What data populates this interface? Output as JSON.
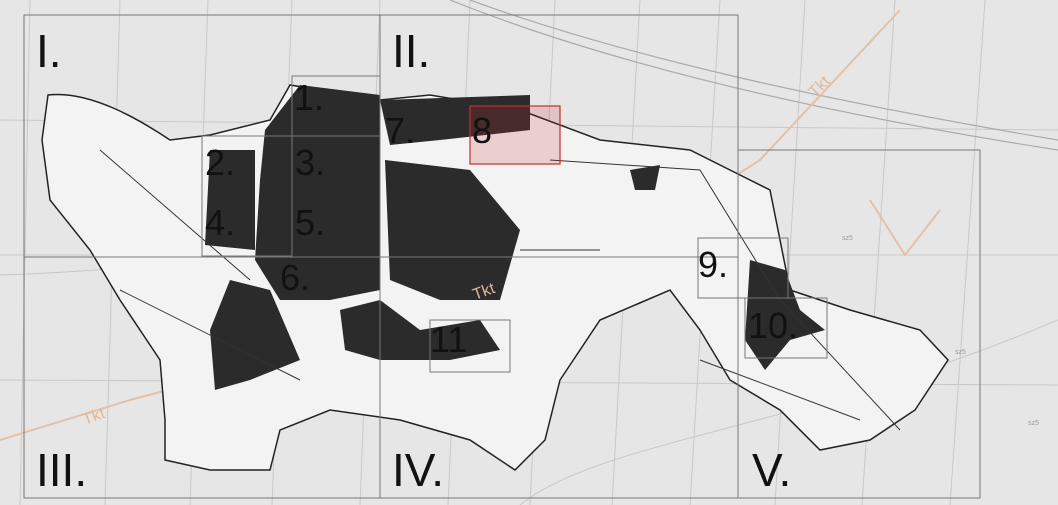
{
  "sheets": [
    {
      "label": "I."
    },
    {
      "label": "II."
    },
    {
      "label": "III."
    },
    {
      "label": "IV."
    },
    {
      "label": "V."
    }
  ],
  "parcels": [
    {
      "label": "1."
    },
    {
      "label": "2."
    },
    {
      "label": "3."
    },
    {
      "label": "4."
    },
    {
      "label": "5."
    },
    {
      "label": "6."
    },
    {
      "label": "7."
    },
    {
      "label": "8"
    },
    {
      "label": "9."
    },
    {
      "label": "10."
    },
    {
      "label": "11"
    }
  ],
  "road_labels": [
    "Tkt",
    "Tkt",
    "Tkt"
  ],
  "contour_labels": [
    "sz5",
    "sz5",
    "sz5"
  ]
}
